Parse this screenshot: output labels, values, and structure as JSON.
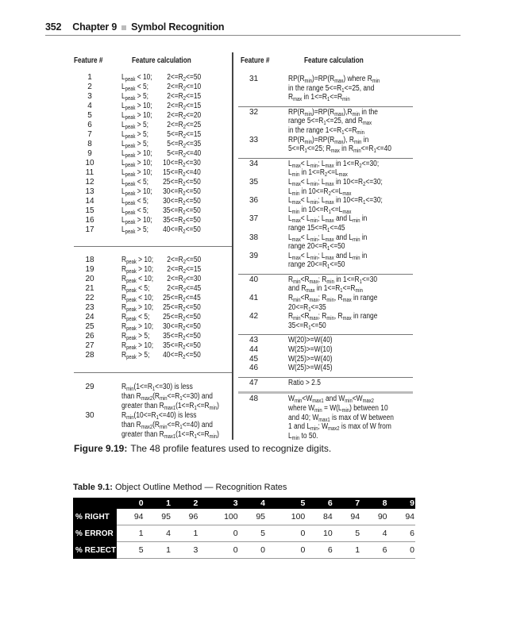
{
  "running_head": {
    "page": "352",
    "chapter": "Chapter 9",
    "title": "Symbol Recognition"
  },
  "figure": {
    "headers": {
      "num": "Feature #",
      "calc": "Feature calculation"
    },
    "left_groups": [
      {
        "rows": [
          {
            "num": "1",
            "a": "L_{peak} < 10;",
            "b": "2<=R_{2}<=50"
          },
          {
            "num": "2",
            "a": "L_{peak} < 5;",
            "b": "2<=R_{2}<=10"
          },
          {
            "num": "3",
            "a": "L_{peak} > 5;",
            "b": "2<=R_{2}<=15"
          },
          {
            "num": "4",
            "a": "L_{peak} > 10;",
            "b": "2<=R_{2}<=15"
          },
          {
            "num": "5",
            "a": "L_{peak} > 10;",
            "b": "2<=R_{2}<=20"
          },
          {
            "num": "6",
            "a": "L_{peak} > 5;",
            "b": "2<=R_{2}<=25"
          },
          {
            "num": "7",
            "a": "L_{peak} > 5;",
            "b": "5<=R_{2}<=15"
          },
          {
            "num": "8",
            "a": "L_{peak} > 5;",
            "b": "5<=R_{2}<=35"
          },
          {
            "num": "9",
            "a": "L_{peak} > 10;",
            "b": "5<=R_{2}<=40"
          },
          {
            "num": "10",
            "a": "L_{peak} > 10;",
            "b": "10<=R_{2}<=30"
          },
          {
            "num": "11",
            "a": "L_{peak} > 10;",
            "b": "15<=R_{2}<=40"
          },
          {
            "num": "12",
            "a": "L_{peak} < 5;",
            "b": "25<=R_{2}<=50"
          },
          {
            "num": "13",
            "a": "L_{peak} > 10;",
            "b": "30<=R_{2}<=50"
          },
          {
            "num": "14",
            "a": "L_{peak} < 5;",
            "b": "30<=R_{2}<=50"
          },
          {
            "num": "15",
            "a": "L_{peak} < 5;",
            "b": "35<=R_{2}<=50"
          },
          {
            "num": "16",
            "a": "L_{peak} > 10;",
            "b": "35<=R_{2}<=50"
          },
          {
            "num": "17",
            "a": "L_{peak} > 5;",
            "b": "40<=R_{2}<=50"
          }
        ]
      },
      {
        "rows": [
          {
            "num": "18",
            "a": "R_{peak} > 10;",
            "b": "2<=R_{2}<=50"
          },
          {
            "num": "19",
            "a": "R_{peak} > 10;",
            "b": "2<=R_{2}<=15"
          },
          {
            "num": "20",
            "a": "R_{peak} < 10;",
            "b": "2<=R_{2}<=30"
          },
          {
            "num": "21",
            "a": "R_{peak} < 5;",
            "b": "2<=R_{2}<=45"
          },
          {
            "num": "22",
            "a": "R_{peak} < 10;",
            "b": "25<=R_{2}<=45"
          },
          {
            "num": "23",
            "a": "R_{peak} > 10;",
            "b": "25<=R_{2}<=50"
          },
          {
            "num": "24",
            "a": "R_{peak} < 5;",
            "b": "25<=R_{2}<=50"
          },
          {
            "num": "25",
            "a": "R_{peak} > 10;",
            "b": "30<=R_{2}<=50"
          },
          {
            "num": "26",
            "a": "R_{peak} > 5;",
            "b": "35<=R_{2}<=50"
          },
          {
            "num": "27",
            "a": "R_{peak} > 10;",
            "b": "35<=R_{2}<=50"
          },
          {
            "num": "28",
            "a": "R_{peak} > 5;",
            "b": "40<=R_{2}<=50"
          }
        ]
      },
      {
        "rows": [
          {
            "num": "29",
            "lines": [
              "R_{min}(1<=R_{1}<=30) is less",
              "than R_{max2}(R_{min}<=R_{1}<=30) and",
              "greater than R_{max1}(1<=R_{1}<=R_{min})"
            ]
          },
          {
            "num": "30",
            "lines": [
              "R_{min}(10<=R_{1}<=40) is less",
              "than R_{max2}(R_{min}<=R_{1}<=40) and",
              "greater than R_{max1}(1<=R_{1}<=R_{min})"
            ]
          }
        ]
      }
    ],
    "right_groups": [
      {
        "rows": [
          {
            "num": "31",
            "lines": [
              "RP(R_{min})=RP(R_{max}) where R_{min}",
              "in the range 5<=R_{1}<=25, and",
              "R_{max} in 1<=R_{1}<=R_{min}"
            ]
          }
        ]
      },
      {
        "rows": [
          {
            "num": "32",
            "lines": [
              "RP(R_{min})=RP(R_{max}),R_{min} in the",
              "range 5<=R_{1}<=25, and R_{max}",
              "in the range 1<=R_{1}<=R_{min}"
            ]
          },
          {
            "num": "33",
            "lines": [
              "RP(R_{min})=RP(R_{max}), R_{min} in",
              "5<=R_{1}<=25; R_{max} in R_{min}<=R_{1}<=40"
            ]
          }
        ]
      },
      {
        "rows": [
          {
            "num": "34",
            "lines": [
              "L_{max}< L_{min}; L_{max} in 1<=R_{2}<=30;",
              "L_{min} in 1<=R_{2}<=L_{max}"
            ]
          },
          {
            "num": "35",
            "lines": [
              "L_{max}< L_{min}; L_{max} in 10<=R_{2}<=30;",
              "L_{min} in 10<=R_{2}<=L_{max}"
            ]
          },
          {
            "num": "36",
            "lines": [
              "L_{max}< L_{min}; L_{max} in 10<=R_{1}<=30;",
              "L_{min} in 10<=R_{1}<=L_{max}"
            ]
          },
          {
            "num": "37",
            "lines": [
              "L_{max}< L_{min}; L_{max} and L_{min} in",
              "range 15<=R_{1}<=45"
            ]
          },
          {
            "num": "38",
            "lines": [
              "L_{max}< L_{min}; L_{max} and L_{min} in",
              "range 20<=R_{1}<=50"
            ]
          },
          {
            "num": "39",
            "lines": [
              "L_{max}< L_{min}; L_{max} and L_{min} in",
              "range 20<=R_{1}<=50"
            ]
          }
        ]
      },
      {
        "rows": [
          {
            "num": "40",
            "lines": [
              "R_{min}<R_{max}; R_{min} in 1<=R_{1}<=30",
              "and R_{max} in 1<=R_{1}<=R_{min}"
            ]
          },
          {
            "num": "41",
            "lines": [
              "R_{min}<R_{max}; R_{min}, R_{max} in range",
              "20<=R_{1}<=35"
            ]
          },
          {
            "num": "42",
            "lines": [
              "R_{min}<R_{max}; R_{min}, R_{max} in range",
              "35<=R_{1}<=50"
            ]
          }
        ]
      },
      {
        "rows": [
          {
            "num": "43",
            "lines": [
              "W(20)>=W(40)"
            ]
          },
          {
            "num": "44",
            "lines": [
              "W(25)>=W(10)"
            ]
          },
          {
            "num": "45",
            "lines": [
              "W(25)>=W(40)"
            ]
          },
          {
            "num": "46",
            "lines": [
              "W(25)>=W(45)"
            ]
          }
        ]
      },
      {
        "rows": [
          {
            "num": "47",
            "lines": [
              "Ratio > 2.5"
            ]
          }
        ]
      },
      {
        "rows": [
          {
            "num": "48",
            "lines": [
              "W_{min}<W_{max1} and W_{min}<W_{max2}",
              "where W_{min} = W(L_{min}) between 10",
              "and 40; W_{max1} is max of W between",
              "1 and L_{min}; W_{max2} is max of W from",
              "L_{min} to 50."
            ]
          }
        ]
      }
    ],
    "caption_label": "Figure 9.19:",
    "caption_text": "The 48 profile features used to recognize digits."
  },
  "table": {
    "caption_label": "Table 9.1:",
    "caption_text": "Object Outline Method — Recognition Rates",
    "columns": [
      "0",
      "1",
      "2",
      "3",
      "4",
      "5",
      "6",
      "7",
      "8",
      "9"
    ],
    "rows": [
      {
        "label": "% RIGHT",
        "values": [
          "94",
          "95",
          "96",
          "100",
          "95",
          "100",
          "84",
          "94",
          "90",
          "94"
        ]
      },
      {
        "label": "% ERROR",
        "values": [
          "1",
          "4",
          "1",
          "0",
          "5",
          "0",
          "10",
          "5",
          "4",
          "6"
        ]
      },
      {
        "label": "% REJECT",
        "values": [
          "5",
          "1",
          "3",
          "0",
          "0",
          "0",
          "6",
          "1",
          "6",
          "0"
        ]
      }
    ]
  }
}
